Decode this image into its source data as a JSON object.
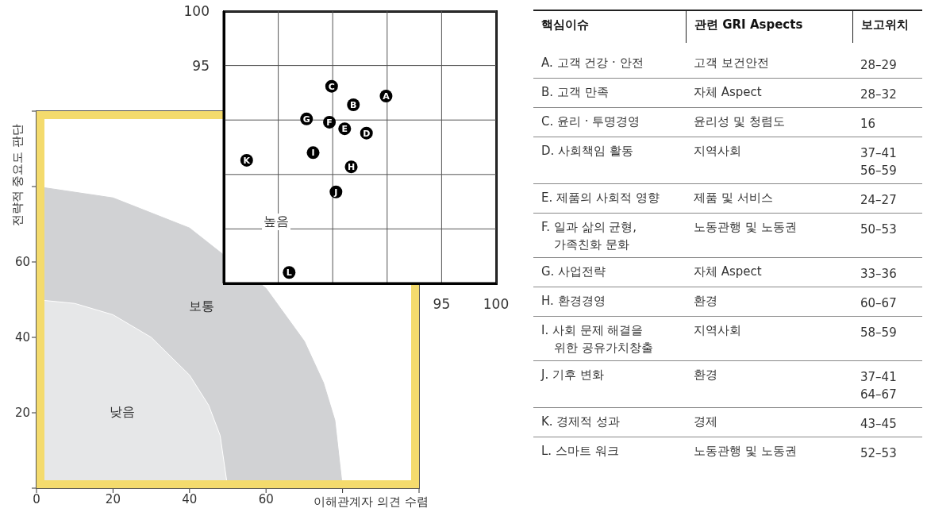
{
  "chart_data": [
    {
      "type": "area",
      "xlabel": "이해관계자 의견 수렴",
      "ylabel": "전략적 중요도 판단",
      "xlim": [
        0,
        100
      ],
      "ylim": [
        0,
        100
      ],
      "xticks": [
        0,
        20,
        40,
        60,
        {
          "value": 80,
          "label": null
        },
        {
          "value": 100,
          "label": null
        }
      ],
      "yticks": [
        {
          "value": 0,
          "label": null
        },
        20,
        40,
        60,
        {
          "value": 80,
          "label": null
        },
        {
          "value": 100,
          "label": null
        }
      ],
      "series": [
        {
          "name": "보통",
          "color": "#d1d2d4",
          "x": [
            0,
            20,
            40,
            60,
            70,
            75,
            78,
            80
          ],
          "values": [
            80,
            77,
            69,
            53,
            39,
            28,
            18,
            0
          ]
        },
        {
          "name": "낮음",
          "color": "#e6e7e8",
          "x": [
            0,
            10,
            20,
            30,
            40,
            45,
            48,
            50
          ],
          "values": [
            50,
            49,
            46,
            40,
            30,
            22,
            14,
            0
          ]
        }
      ]
    },
    {
      "type": "scatter",
      "marker": "circle",
      "grid": true,
      "xlim": [
        75,
        100
      ],
      "ylim": [
        75,
        100
      ],
      "xticks": [
        {
          "value": 75,
          "label": null
        },
        {
          "value": 80,
          "label": null
        },
        {
          "value": 85,
          "label": null
        },
        {
          "value": 90,
          "label": null
        },
        95,
        100
      ],
      "yticks": [
        {
          "value": 75,
          "label": null
        },
        {
          "value": 80,
          "label": null
        },
        {
          "value": 85,
          "label": null
        },
        {
          "value": 90,
          "label": null
        },
        95,
        100
      ],
      "annotations": [
        "높음"
      ],
      "series": [
        {
          "name": "A",
          "color": "#000000",
          "x": [
            89.9
          ],
          "values": [
            92.2
          ]
        },
        {
          "name": "B",
          "color": "#000000",
          "x": [
            86.9
          ],
          "values": [
            91.4
          ]
        },
        {
          "name": "C",
          "color": "#000000",
          "x": [
            84.9
          ],
          "values": [
            93.1
          ]
        },
        {
          "name": "D",
          "color": "#000000",
          "x": [
            88.1
          ],
          "values": [
            88.8
          ]
        },
        {
          "name": "E",
          "color": "#000000",
          "x": [
            86.1
          ],
          "values": [
            89.2
          ]
        },
        {
          "name": "F",
          "color": "#000000",
          "x": [
            84.7
          ],
          "values": [
            89.8
          ]
        },
        {
          "name": "G",
          "color": "#000000",
          "x": [
            82.6
          ],
          "values": [
            90.1
          ]
        },
        {
          "name": "H",
          "color": "#000000",
          "x": [
            86.7
          ],
          "values": [
            85.7
          ]
        },
        {
          "name": "I",
          "color": "#000000",
          "x": [
            83.2
          ],
          "values": [
            87.0
          ]
        },
        {
          "name": "J",
          "color": "#000000",
          "x": [
            85.3
          ],
          "values": [
            83.4
          ]
        },
        {
          "name": "K",
          "color": "#000000",
          "x": [
            77.1
          ],
          "values": [
            86.3
          ]
        },
        {
          "name": "L",
          "color": "#000000",
          "x": [
            81.0
          ],
          "values": [
            76.0
          ]
        }
      ]
    },
    {
      "type": "other",
      "categories": [
        "핵심이슈",
        "관련 GRI Aspects",
        "보고위치"
      ],
      "annotations": [
        "A. 고객 건강 · 안전",
        "고객 보건안전",
        "28–29",
        "B. 고객 만족",
        "자체 Aspect",
        "28–32",
        "C. 윤리 · 투명경영",
        "윤리성 및 청렴도",
        "16",
        "D. 사회책임 활동",
        "지역사회",
        "37–41\n56–59",
        "E. 제품의 사회적 영향",
        "제품 및 서비스",
        "24–27",
        "F. 일과 삶의 균형,\n가족친화 문화",
        "노동관행 및 노동권",
        "50–53",
        "G. 사업전략",
        "자체 Aspect",
        "33–36",
        "H. 환경경영",
        "환경",
        "60–67",
        "I. 사회 문제 해결을\n위한 공유가치창출",
        "지역사회",
        "58–59",
        "J. 기후 변화",
        "환경",
        "37–41\n64–67",
        "K. 경제적 성과",
        "경제",
        "43–45",
        "L. 스마트 워크",
        "노동관행 및 노동권",
        "52–53"
      ]
    }
  ]
}
